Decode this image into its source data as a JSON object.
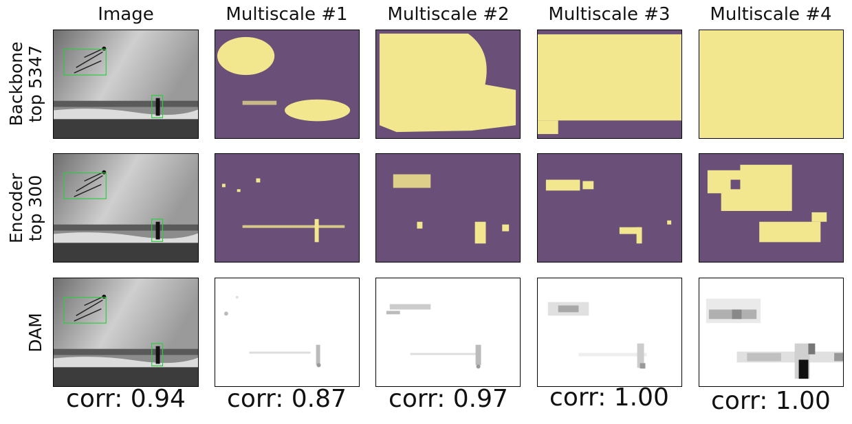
{
  "figure": {
    "columns": [
      "Image",
      "Multiscale #1",
      "Multiscale #2",
      "Multiscale #3",
      "Multiscale #4"
    ],
    "rows": [
      {
        "line1": "Backbone",
        "line2": "top 5347"
      },
      {
        "line1": "Encoder",
        "line2": "top 300"
      },
      {
        "line1": "DAM",
        "line2": ""
      }
    ],
    "correlations": [
      "corr: 0.94",
      "corr: 0.87",
      "corr: 0.97",
      "corr: 1.00",
      "corr: 1.00"
    ]
  },
  "colors": {
    "selected": "#f2e68e",
    "unselected": "#6a4f78",
    "box": "#2ecc40"
  }
}
